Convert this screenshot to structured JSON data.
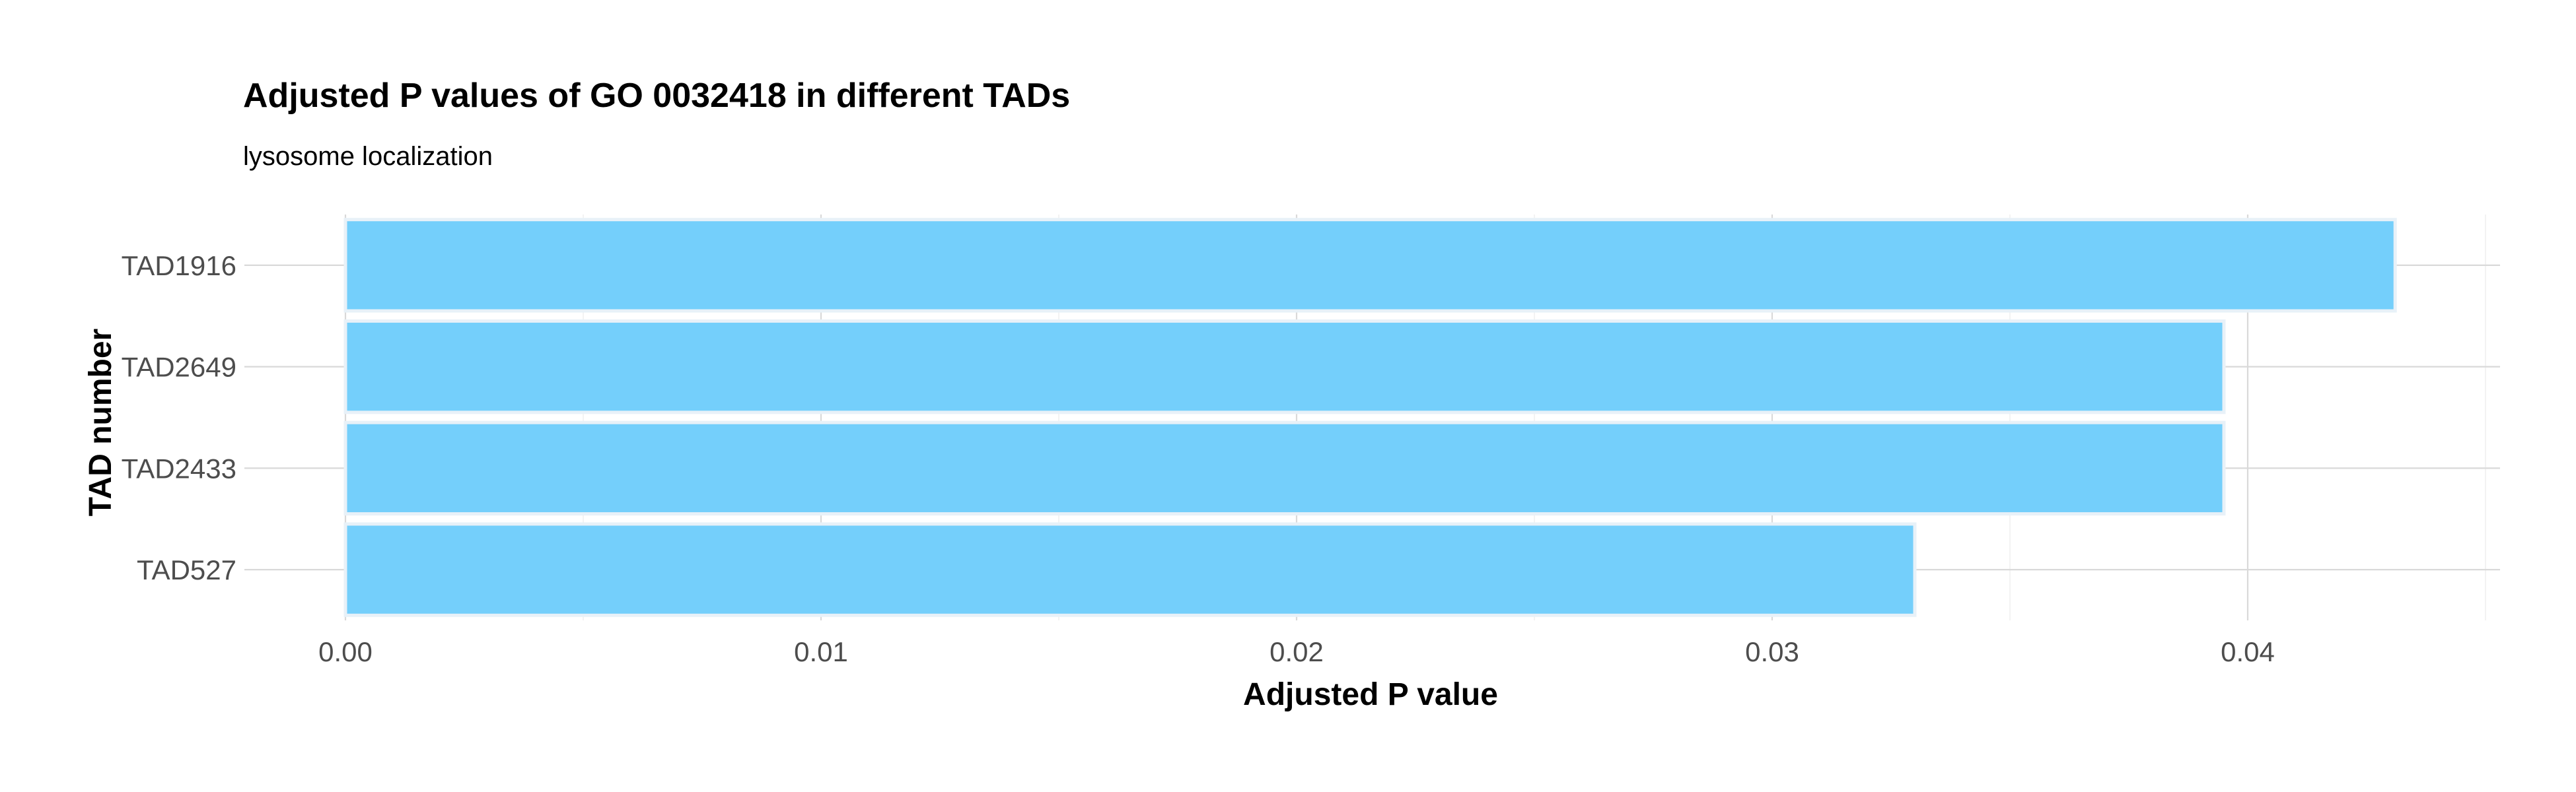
{
  "chart_data": {
    "type": "bar",
    "orientation": "horizontal",
    "title": "Adjusted P values of GO 0032418 in different TADs",
    "subtitle": "lysosome localization",
    "xlabel": "Adjusted P value",
    "ylabel": "TAD number",
    "categories": [
      "TAD1916",
      "TAD2649",
      "TAD2433",
      "TAD527"
    ],
    "values": [
      0.0431,
      0.0395,
      0.0395,
      0.033
    ],
    "xlim": [
      0,
      0.045
    ],
    "xticks": [
      0.0,
      0.01,
      0.02,
      0.03,
      0.04
    ],
    "xtick_labels": [
      "0.00",
      "0.01",
      "0.02",
      "0.03",
      "0.04"
    ],
    "grid": true,
    "legend": "none",
    "bar_color": "#74CFFB",
    "bar_edge_color": "#E8F1F8"
  }
}
